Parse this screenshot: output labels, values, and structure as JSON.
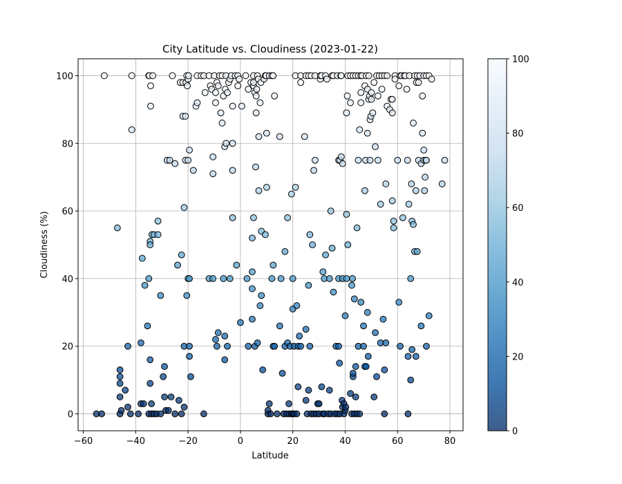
{
  "chart_data": {
    "type": "scatter",
    "title": "City Latitude vs. Cloudiness (2023-01-22)",
    "xlabel": "Latitude",
    "ylabel": "Cloudiness (%)",
    "xlim": [
      -62,
      85
    ],
    "ylim": [
      -5,
      105
    ],
    "xticks": [
      -60,
      -40,
      -20,
      0,
      20,
      40,
      60,
      80
    ],
    "yticks": [
      0,
      20,
      40,
      60,
      80,
      100
    ],
    "grid": true,
    "colorbar": {
      "min": 0,
      "max": 100,
      "ticks": [
        0,
        20,
        40,
        60,
        80,
        100
      ],
      "colormap": "Blues_r",
      "alpha": 0.75
    },
    "colors": {
      "low": "#08306b",
      "mid": "#6baed6",
      "high": "#f7fbff",
      "edge": "#000000"
    },
    "points": [
      [
        -55,
        0
      ],
      [
        -53,
        0
      ],
      [
        -52,
        100
      ],
      [
        -47,
        55
      ],
      [
        -46,
        0
      ],
      [
        -46,
        13
      ],
      [
        -46,
        11
      ],
      [
        -46,
        9
      ],
      [
        -46,
        5
      ],
      [
        -45.5,
        1
      ],
      [
        -44,
        7
      ],
      [
        -43,
        20
      ],
      [
        -43,
        2
      ],
      [
        -42,
        0
      ],
      [
        -41.5,
        100
      ],
      [
        -41.5,
        84
      ],
      [
        -39,
        0
      ],
      [
        -38,
        21
      ],
      [
        -38,
        3
      ],
      [
        -37.5,
        46
      ],
      [
        -37,
        3
      ],
      [
        -36.5,
        38
      ],
      [
        -35.5,
        26
      ],
      [
        -35,
        40
      ],
      [
        -35,
        0
      ],
      [
        -35,
        100
      ],
      [
        -34.8,
        100
      ],
      [
        -34.5,
        16
      ],
      [
        -34.5,
        9
      ],
      [
        -34.5,
        51
      ],
      [
        -34.5,
        50
      ],
      [
        -34.3,
        97
      ],
      [
        -34.3,
        91
      ],
      [
        -34,
        3
      ],
      [
        -34,
        0
      ],
      [
        -33.8,
        53
      ],
      [
        -33.5,
        100
      ],
      [
        -33,
        53
      ],
      [
        -33,
        0
      ],
      [
        -32,
        0
      ],
      [
        -31.5,
        57
      ],
      [
        -31.5,
        53
      ],
      [
        -30.5,
        35
      ],
      [
        -30.5,
        0
      ],
      [
        -29.5,
        11
      ],
      [
        -29,
        14
      ],
      [
        -29,
        5
      ],
      [
        -28.5,
        1
      ],
      [
        -28,
        75
      ],
      [
        -27.5,
        1
      ],
      [
        -27,
        75
      ],
      [
        -26.5,
        5
      ],
      [
        -26,
        100
      ],
      [
        -25,
        74
      ],
      [
        -25,
        0
      ],
      [
        -24,
        44
      ],
      [
        -23.5,
        4
      ],
      [
        -23,
        98
      ],
      [
        -22.5,
        0
      ],
      [
        -22.5,
        47
      ],
      [
        -22,
        88
      ],
      [
        -22,
        98
      ],
      [
        -21.5,
        61
      ],
      [
        -21.5,
        20
      ],
      [
        -21.5,
        2
      ],
      [
        -21,
        88
      ],
      [
        -21,
        75
      ],
      [
        -20.8,
        98
      ],
      [
        -20.5,
        35
      ],
      [
        -20.5,
        100
      ],
      [
        -20.3,
        97
      ],
      [
        -20,
        75
      ],
      [
        -20,
        99
      ],
      [
        -20,
        40
      ],
      [
        -19.8,
        100
      ],
      [
        -19.5,
        17
      ],
      [
        -19.5,
        78
      ],
      [
        -19.5,
        20
      ],
      [
        -19.5,
        40
      ],
      [
        -19,
        11
      ],
      [
        -18,
        72
      ],
      [
        -17,
        91
      ],
      [
        -16.5,
        100
      ],
      [
        -16.5,
        92
      ],
      [
        -15,
        100
      ],
      [
        -14,
        100
      ],
      [
        -14,
        0
      ],
      [
        -13.5,
        95
      ],
      [
        -12,
        100
      ],
      [
        -12,
        40
      ],
      [
        -11.5,
        97
      ],
      [
        -11,
        96
      ],
      [
        -10.5,
        40
      ],
      [
        -10.5,
        71
      ],
      [
        -10.5,
        76
      ],
      [
        -10,
        100
      ],
      [
        -9.5,
        92
      ],
      [
        -9.5,
        22
      ],
      [
        -9.5,
        95
      ],
      [
        -9,
        20
      ],
      [
        -9,
        98
      ],
      [
        -8.5,
        24
      ],
      [
        -8.5,
        97
      ],
      [
        -8,
        100
      ],
      [
        -7.5,
        89
      ],
      [
        -7,
        100
      ],
      [
        -7,
        86
      ],
      [
        -6.5,
        40
      ],
      [
        -6.5,
        94
      ],
      [
        -6,
        23
      ],
      [
        -6,
        16
      ],
      [
        -6,
        79
      ],
      [
        -5.8,
        96
      ],
      [
        -5.5,
        80
      ],
      [
        -5.5,
        100
      ],
      [
        -5,
        95
      ],
      [
        -5,
        20
      ],
      [
        -4.5,
        98
      ],
      [
        -4,
        40
      ],
      [
        -4,
        99
      ],
      [
        -3.5,
        100
      ],
      [
        -3,
        80
      ],
      [
        -3,
        91
      ],
      [
        -3,
        72
      ],
      [
        -3,
        58
      ],
      [
        -2,
        100
      ],
      [
        -1.5,
        44
      ],
      [
        -1,
        97
      ],
      [
        -1,
        100
      ],
      [
        -0.5,
        99
      ],
      [
        0,
        27
      ],
      [
        0.5,
        91
      ],
      [
        2,
        100
      ],
      [
        2.5,
        40
      ],
      [
        3,
        96
      ],
      [
        3,
        20
      ],
      [
        4,
        98
      ],
      [
        4.5,
        52
      ],
      [
        4.5,
        42
      ],
      [
        4.5,
        37
      ],
      [
        4.5,
        28
      ],
      [
        5,
        100
      ],
      [
        5,
        97
      ],
      [
        5,
        58
      ],
      [
        5,
        98
      ],
      [
        5.5,
        95
      ],
      [
        5.5,
        20
      ],
      [
        5.8,
        73
      ],
      [
        6,
        89
      ],
      [
        6,
        94
      ],
      [
        6.2,
        96
      ],
      [
        6.5,
        21
      ],
      [
        6.5,
        100
      ],
      [
        6.8,
        99
      ],
      [
        7,
        66
      ],
      [
        7,
        82
      ],
      [
        7.5,
        32
      ],
      [
        7.5,
        92
      ],
      [
        7.8,
        98
      ],
      [
        8,
        35
      ],
      [
        8,
        54
      ],
      [
        8.5,
        13
      ],
      [
        9,
        99
      ],
      [
        9.5,
        53
      ],
      [
        9.5,
        100
      ],
      [
        9.8,
        100
      ],
      [
        10,
        83
      ],
      [
        10,
        67
      ],
      [
        10.5,
        0
      ],
      [
        10.5,
        1
      ],
      [
        11,
        3
      ],
      [
        11,
        100
      ],
      [
        11.5,
        0
      ],
      [
        12,
        40
      ],
      [
        12,
        100
      ],
      [
        12.5,
        44
      ],
      [
        12.5,
        100
      ],
      [
        12.5,
        20
      ],
      [
        13,
        94
      ],
      [
        13,
        20
      ],
      [
        14,
        0
      ],
      [
        15,
        26
      ],
      [
        15,
        82
      ],
      [
        15.5,
        40
      ],
      [
        16,
        12
      ],
      [
        16.5,
        0
      ],
      [
        17,
        48
      ],
      [
        17,
        20
      ],
      [
        17.5,
        0
      ],
      [
        18,
        21
      ],
      [
        18,
        58
      ],
      [
        18.5,
        3
      ],
      [
        18.5,
        0
      ],
      [
        19,
        20
      ],
      [
        19.5,
        0
      ],
      [
        19.5,
        65
      ],
      [
        20,
        40
      ],
      [
        20,
        31
      ],
      [
        20,
        0
      ],
      [
        20.5,
        20
      ],
      [
        20.5,
        0
      ],
      [
        21,
        67
      ],
      [
        21,
        100
      ],
      [
        21.5,
        32
      ],
      [
        21.5,
        0
      ],
      [
        22,
        20
      ],
      [
        22,
        8
      ],
      [
        22.5,
        23
      ],
      [
        23,
        98
      ],
      [
        23,
        20
      ],
      [
        23,
        100
      ],
      [
        24.5,
        82
      ],
      [
        25,
        25
      ],
      [
        25,
        4
      ],
      [
        25,
        100
      ],
      [
        25.5,
        0
      ],
      [
        26,
        100
      ],
      [
        26,
        38
      ],
      [
        26,
        7
      ],
      [
        26.5,
        53
      ],
      [
        26.5,
        20
      ],
      [
        27,
        100
      ],
      [
        27,
        0
      ],
      [
        27.5,
        50
      ],
      [
        28,
        0
      ],
      [
        28,
        72
      ],
      [
        28.5,
        75
      ],
      [
        28.5,
        100
      ],
      [
        29,
        0
      ],
      [
        29.5,
        3
      ],
      [
        30,
        3
      ],
      [
        30,
        0
      ],
      [
        30.5,
        99
      ],
      [
        30.5,
        100
      ],
      [
        31,
        100
      ],
      [
        31,
        8
      ],
      [
        31.5,
        0
      ],
      [
        31.5,
        42
      ],
      [
        32,
        40
      ],
      [
        32,
        0
      ],
      [
        32.5,
        100
      ],
      [
        32.5,
        47
      ],
      [
        33,
        99
      ],
      [
        33.5,
        0
      ],
      [
        34,
        7
      ],
      [
        34,
        40
      ],
      [
        34.5,
        60
      ],
      [
        34.5,
        0
      ],
      [
        35,
        100
      ],
      [
        35,
        49
      ],
      [
        35.5,
        100
      ],
      [
        35.5,
        36
      ],
      [
        36,
        0
      ],
      [
        36.5,
        20
      ],
      [
        37,
        0
      ],
      [
        37,
        100
      ],
      [
        37.5,
        40
      ],
      [
        37.5,
        20
      ],
      [
        37.5,
        75
      ],
      [
        37.8,
        15
      ],
      [
        38,
        75
      ],
      [
        38,
        0
      ],
      [
        38.3,
        100
      ],
      [
        38.5,
        76
      ],
      [
        38.5,
        100
      ],
      [
        38.8,
        4
      ],
      [
        39,
        40
      ],
      [
        39,
        74
      ],
      [
        39,
        2
      ],
      [
        39.5,
        3
      ],
      [
        39.5,
        0
      ],
      [
        40,
        29
      ],
      [
        40,
        1
      ],
      [
        40.2,
        2
      ],
      [
        40.5,
        89
      ],
      [
        40.5,
        59
      ],
      [
        40.5,
        40
      ],
      [
        40.8,
        94
      ],
      [
        41,
        50
      ],
      [
        41,
        100
      ],
      [
        42,
        92
      ],
      [
        42,
        6
      ],
      [
        42,
        100
      ],
      [
        42.5,
        0
      ],
      [
        42.5,
        38
      ],
      [
        42.8,
        40
      ],
      [
        43,
        11
      ],
      [
        43,
        100
      ],
      [
        43,
        12
      ],
      [
        43.5,
        34
      ],
      [
        43.5,
        0
      ],
      [
        44,
        100
      ],
      [
        44,
        14
      ],
      [
        44,
        5
      ],
      [
        44.5,
        55
      ],
      [
        44.5,
        0
      ],
      [
        45,
        100
      ],
      [
        45,
        75
      ],
      [
        45,
        20
      ],
      [
        45.5,
        0
      ],
      [
        45.5,
        84
      ],
      [
        46,
        95
      ],
      [
        46,
        100
      ],
      [
        46,
        33
      ],
      [
        46,
        92
      ],
      [
        46.5,
        100
      ],
      [
        47,
        26
      ],
      [
        47,
        20
      ],
      [
        47.5,
        14
      ],
      [
        47.5,
        66
      ],
      [
        47.5,
        97
      ],
      [
        47.8,
        75
      ],
      [
        48,
        14
      ],
      [
        48,
        100
      ],
      [
        48.5,
        83
      ],
      [
        48.5,
        30
      ],
      [
        48.5,
        96
      ],
      [
        48.8,
        17
      ],
      [
        49,
        93
      ],
      [
        49,
        100
      ],
      [
        49.3,
        94
      ],
      [
        49.5,
        75
      ],
      [
        49.5,
        87
      ],
      [
        49.8,
        88
      ],
      [
        50,
        95
      ],
      [
        50,
        93
      ],
      [
        50.5,
        89
      ],
      [
        51,
        5
      ],
      [
        51,
        98
      ],
      [
        51.5,
        24
      ],
      [
        51.5,
        79
      ],
      [
        52,
        11
      ],
      [
        52,
        100
      ],
      [
        52.5,
        94
      ],
      [
        52.5,
        75
      ],
      [
        53,
        100
      ],
      [
        53.5,
        21
      ],
      [
        53.5,
        62
      ],
      [
        54,
        96
      ],
      [
        54,
        100
      ],
      [
        54.5,
        28
      ],
      [
        55,
        0
      ],
      [
        55,
        13
      ],
      [
        55,
        100
      ],
      [
        55.5,
        68
      ],
      [
        55.5,
        21
      ],
      [
        56,
        91
      ],
      [
        56,
        100
      ],
      [
        57,
        90
      ],
      [
        57.5,
        93
      ],
      [
        58,
        63
      ],
      [
        58,
        89
      ],
      [
        58,
        93
      ],
      [
        58.5,
        55
      ],
      [
        58.5,
        57
      ],
      [
        59,
        100
      ],
      [
        59,
        99
      ],
      [
        60,
        75
      ],
      [
        60.5,
        33
      ],
      [
        60.5,
        97
      ],
      [
        61,
        20
      ],
      [
        61,
        100
      ],
      [
        61.5,
        100
      ],
      [
        62,
        58
      ],
      [
        62.5,
        100
      ],
      [
        63,
        100
      ],
      [
        63.5,
        96
      ],
      [
        63.8,
        75
      ],
      [
        64,
        0
      ],
      [
        64,
        17
      ],
      [
        64.3,
        62
      ],
      [
        64.5,
        100
      ],
      [
        65,
        40
      ],
      [
        65,
        10
      ],
      [
        65.3,
        68
      ],
      [
        65.5,
        57
      ],
      [
        65.5,
        19
      ],
      [
        66,
        86
      ],
      [
        66,
        56
      ],
      [
        66.5,
        100
      ],
      [
        66.5,
        48
      ],
      [
        67,
        17
      ],
      [
        67,
        66
      ],
      [
        67.2,
        98
      ],
      [
        67.5,
        48
      ],
      [
        67.5,
        100
      ],
      [
        68,
        98
      ],
      [
        68,
        75
      ],
      [
        68.5,
        100
      ],
      [
        69,
        74
      ],
      [
        69,
        26
      ],
      [
        69.5,
        83
      ],
      [
        69.5,
        94
      ],
      [
        70,
        100
      ],
      [
        70,
        75
      ],
      [
        70,
        78
      ],
      [
        70.3,
        66
      ],
      [
        70.5,
        70
      ],
      [
        70.8,
        75
      ],
      [
        71,
        20
      ],
      [
        71,
        75
      ],
      [
        71,
        100
      ],
      [
        72,
        29
      ],
      [
        72,
        100
      ],
      [
        73,
        99
      ],
      [
        77,
        68
      ],
      [
        78,
        75
      ]
    ]
  }
}
